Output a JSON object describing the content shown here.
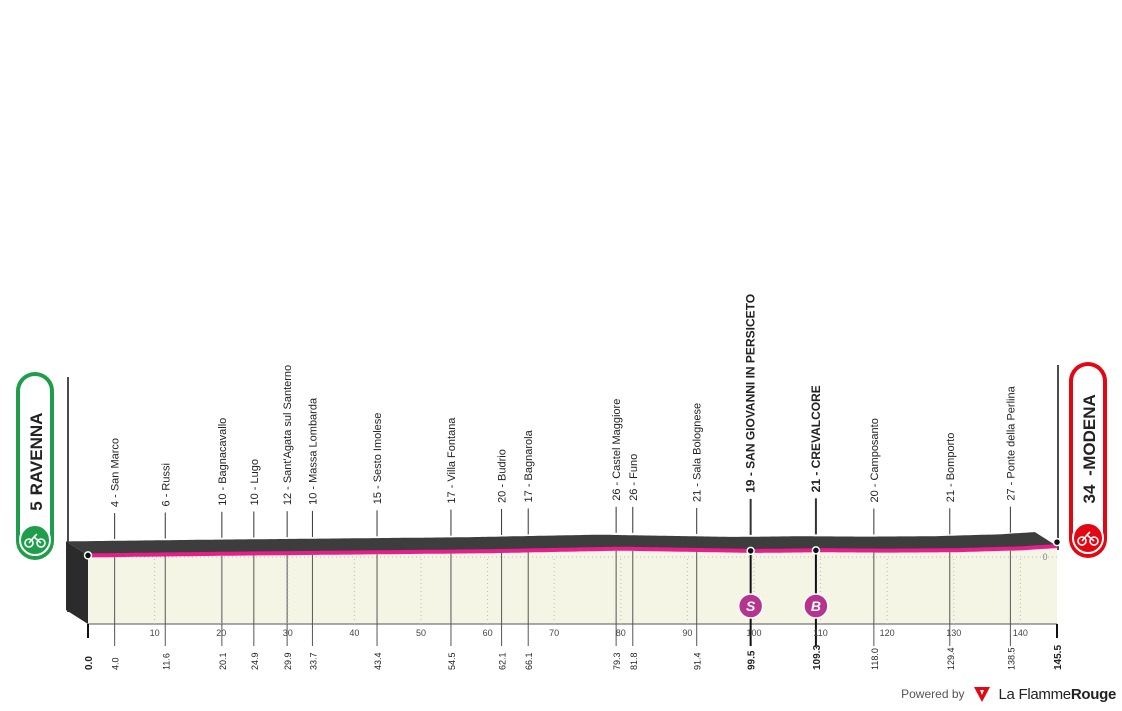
{
  "chart_data": {
    "type": "area",
    "start": {
      "altitude": "5",
      "name": "RAVENNA",
      "km": "0.0"
    },
    "finish": {
      "altitude": "34",
      "name": "MODENA",
      "km": "145.5"
    },
    "total_km": 145.5,
    "x_ticks": [
      10,
      20,
      30,
      40,
      50,
      60,
      70,
      80,
      90,
      100,
      110,
      120,
      130,
      140
    ],
    "y_reference_label": "0",
    "waypoints": [
      {
        "km": 4.0,
        "label": "4 - San Marco",
        "bold": false
      },
      {
        "km": 11.6,
        "label": "6 - Russi",
        "bold": false
      },
      {
        "km": 20.1,
        "label": "10 - Bagnacavallo",
        "bold": false
      },
      {
        "km": 24.9,
        "label": "10 - Lugo",
        "bold": false
      },
      {
        "km": 29.9,
        "label": "12 - Sant'Agata sul Santerno",
        "bold": false
      },
      {
        "km": 33.7,
        "label": "10 - Massa Lombarda",
        "bold": false
      },
      {
        "km": 43.4,
        "label": "15 - Sesto Imolese",
        "bold": false
      },
      {
        "km": 54.5,
        "label": "17 - Villa Fontana",
        "bold": false
      },
      {
        "km": 62.1,
        "label": "20 - Budrio",
        "bold": false
      },
      {
        "km": 66.1,
        "label": "17 - Bagnarola",
        "bold": false
      },
      {
        "km": 79.3,
        "label": "26 - Castel Maggiore",
        "bold": false
      },
      {
        "km": 81.8,
        "label": "26 - Funo",
        "bold": false
      },
      {
        "km": 91.4,
        "label": "21 - Sala Bolognese",
        "bold": false
      },
      {
        "km": 99.5,
        "label": "19 - SAN GIOVANNI IN PERSICETO",
        "bold": true,
        "marker": "S"
      },
      {
        "km": 109.3,
        "label": "21 - CREVALCORE",
        "bold": true,
        "marker": "B"
      },
      {
        "km": 118.0,
        "label": "20 - Camposanto",
        "bold": false
      },
      {
        "km": 129.4,
        "label": "21 - Bomporto",
        "bold": false
      },
      {
        "km": 138.5,
        "label": "27 - Ponte della Perlina",
        "bold": false
      }
    ],
    "profile": [
      [
        0,
        5
      ],
      [
        20,
        10
      ],
      [
        40,
        14
      ],
      [
        60,
        18
      ],
      [
        80,
        26
      ],
      [
        100,
        19
      ],
      [
        110,
        21
      ],
      [
        120,
        20
      ],
      [
        130,
        21
      ],
      [
        140,
        27
      ],
      [
        145.5,
        34
      ]
    ],
    "colors": {
      "route": "#e61e8c",
      "fill": "#f4f5e4",
      "side": "#2b2b2b",
      "start_badge": "#1e9e4a",
      "finish_badge": "#e30613",
      "marker": "#b6348e"
    }
  },
  "footer": {
    "powered_by": "Powered by",
    "brand_light": "La Flamme",
    "brand_bold": "Rouge"
  }
}
